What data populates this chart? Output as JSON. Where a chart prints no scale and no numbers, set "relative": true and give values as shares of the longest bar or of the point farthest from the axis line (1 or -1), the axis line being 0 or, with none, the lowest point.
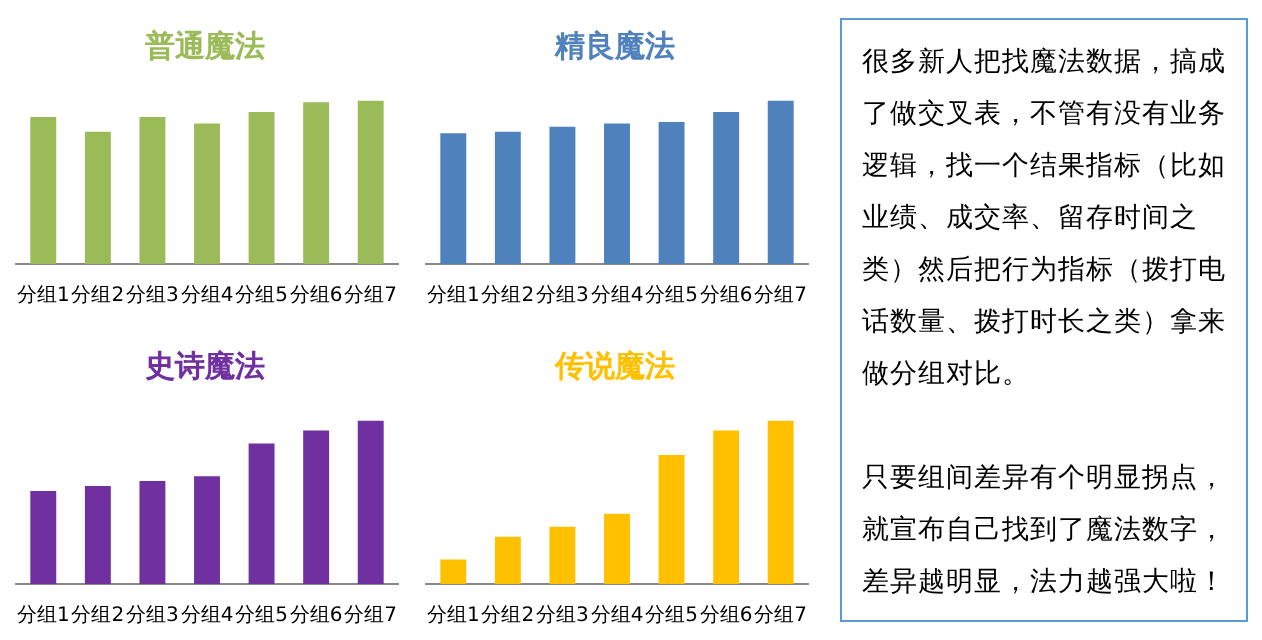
{
  "chart_data": [
    {
      "type": "bar",
      "title": "普通魔法",
      "relative": true,
      "categories": [
        "分组1",
        "分组2",
        "分组3",
        "分组4",
        "分组5",
        "分组6",
        "分组7"
      ],
      "color": "#9bbb59",
      "values": [
        0.9,
        0.81,
        0.9,
        0.86,
        0.93,
        0.99,
        1
      ]
    },
    {
      "type": "bar",
      "title": "精良魔法",
      "relative": true,
      "categories": [
        "分组1",
        "分组2",
        "分组3",
        "分组4",
        "分组5",
        "分组6",
        "分组7"
      ],
      "color": "#4f81bd",
      "values": [
        0.8,
        0.81,
        0.84,
        0.86,
        0.87,
        0.93,
        1
      ]
    },
    {
      "type": "bar",
      "title": "史诗魔法",
      "relative": true,
      "categories": [
        "分组1",
        "分组2",
        "分组3",
        "分组4",
        "分组5",
        "分组6",
        "分组7"
      ],
      "color": "#7030a0",
      "values": [
        0.57,
        0.6,
        0.63,
        0.66,
        0.86,
        0.94,
        1
      ]
    },
    {
      "type": "bar",
      "title": "传说魔法",
      "relative": true,
      "categories": [
        "分组1",
        "分组2",
        "分组3",
        "分组4",
        "分组5",
        "分组6",
        "分组7"
      ],
      "color": "#ffc000",
      "values": [
        0.15,
        0.29,
        0.35,
        0.43,
        0.79,
        0.94,
        1
      ]
    },
    {
      "type": "other",
      "annotations": [
        "很多新人把找魔法数据，搞成了做交叉表，不管有没有业务逻辑，找一个结果指标（比如业绩、成交率、留存时间之类）然后把行为指标（拨打电话数量、拨打时长之类）拿来做分组对比。",
        "只要组间差异有个明显拐点，就宣布自己找到了魔法数字，差异越明显，法力越强大啦！"
      ]
    }
  ]
}
